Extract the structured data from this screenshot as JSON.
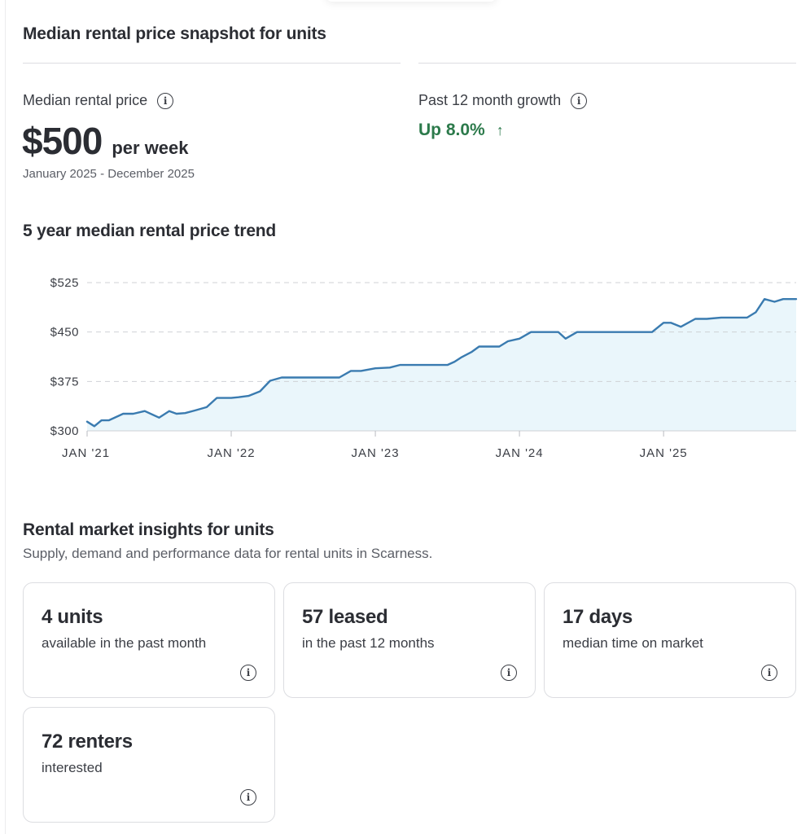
{
  "snapshot": {
    "title": "Median rental price snapshot for units",
    "median_label": "Median rental price",
    "median_value": "$500",
    "median_unit": "per week",
    "period": "January 2025 - December 2025",
    "growth_label": "Past 12 month growth",
    "growth_value": "Up 8.0%",
    "growth_arrow": "↑",
    "info_glyph": "i"
  },
  "trend": {
    "title": "5 year median rental price trend"
  },
  "chart_data": {
    "type": "area",
    "title": "5 year median rental price trend",
    "xlabel": "",
    "ylabel": "",
    "y_ticks": [
      "$525",
      "$450",
      "$375",
      "$300"
    ],
    "y_tick_values": [
      525,
      450,
      375,
      300
    ],
    "ylim": [
      300,
      525
    ],
    "x_ticks": [
      "JAN '21",
      "JAN '22",
      "JAN '23",
      "JAN '24",
      "JAN '25"
    ],
    "x_tick_values": [
      2021,
      2022,
      2023,
      2024,
      2025
    ],
    "xlim": [
      2021,
      2025.92
    ],
    "grid": true,
    "line_color": "#3a7bb0",
    "fill_color": "#eaf6fb",
    "series": [
      {
        "x": [
          2021.0,
          2021.05,
          2021.1,
          2021.15,
          2021.25,
          2021.32,
          2021.4,
          2021.5,
          2021.57,
          2021.62,
          2021.68,
          2021.75,
          2021.83,
          2021.9,
          2021.97,
          2022.0,
          2022.05,
          2022.12,
          2022.2,
          2022.27,
          2022.35,
          2022.42,
          2022.5,
          2022.6,
          2022.75,
          2022.83,
          2022.9,
          2023.0,
          2023.1,
          2023.17,
          2023.25,
          2023.4,
          2023.5,
          2023.55,
          2023.6,
          2023.67,
          2023.72,
          2023.8,
          2023.86,
          2023.92,
          2024.0,
          2024.08,
          2024.18,
          2024.27,
          2024.32,
          2024.4,
          2024.55,
          2024.7,
          2024.83,
          2024.92,
          2025.0,
          2025.05,
          2025.12,
          2025.22,
          2025.3,
          2025.4,
          2025.5,
          2025.58,
          2025.64,
          2025.7,
          2025.77,
          2025.83,
          2025.92
        ],
        "y": [
          314,
          307,
          316,
          316,
          326,
          326,
          330,
          320,
          330,
          326,
          327,
          331,
          336,
          350,
          350,
          350,
          351,
          353,
          360,
          376,
          381,
          381,
          381,
          381,
          381,
          391,
          391,
          395,
          396,
          400,
          400,
          400,
          400,
          405,
          412,
          420,
          428,
          428,
          428,
          436,
          440,
          450,
          450,
          450,
          440,
          450,
          450,
          450,
          450,
          450,
          464,
          464,
          458,
          470,
          470,
          472,
          472,
          472,
          480,
          500,
          496,
          500,
          500
        ]
      }
    ]
  },
  "insights": {
    "title": "Rental market insights for units",
    "subtitle": "Supply, demand and performance data for rental units in Scarness.",
    "cards": [
      {
        "value": "4 units",
        "desc": "available in the past month"
      },
      {
        "value": "57 leased",
        "desc": "in the past 12 months"
      },
      {
        "value": "17 days",
        "desc": "median time on market"
      },
      {
        "value": "72 renters",
        "desc": "interested"
      }
    ]
  }
}
